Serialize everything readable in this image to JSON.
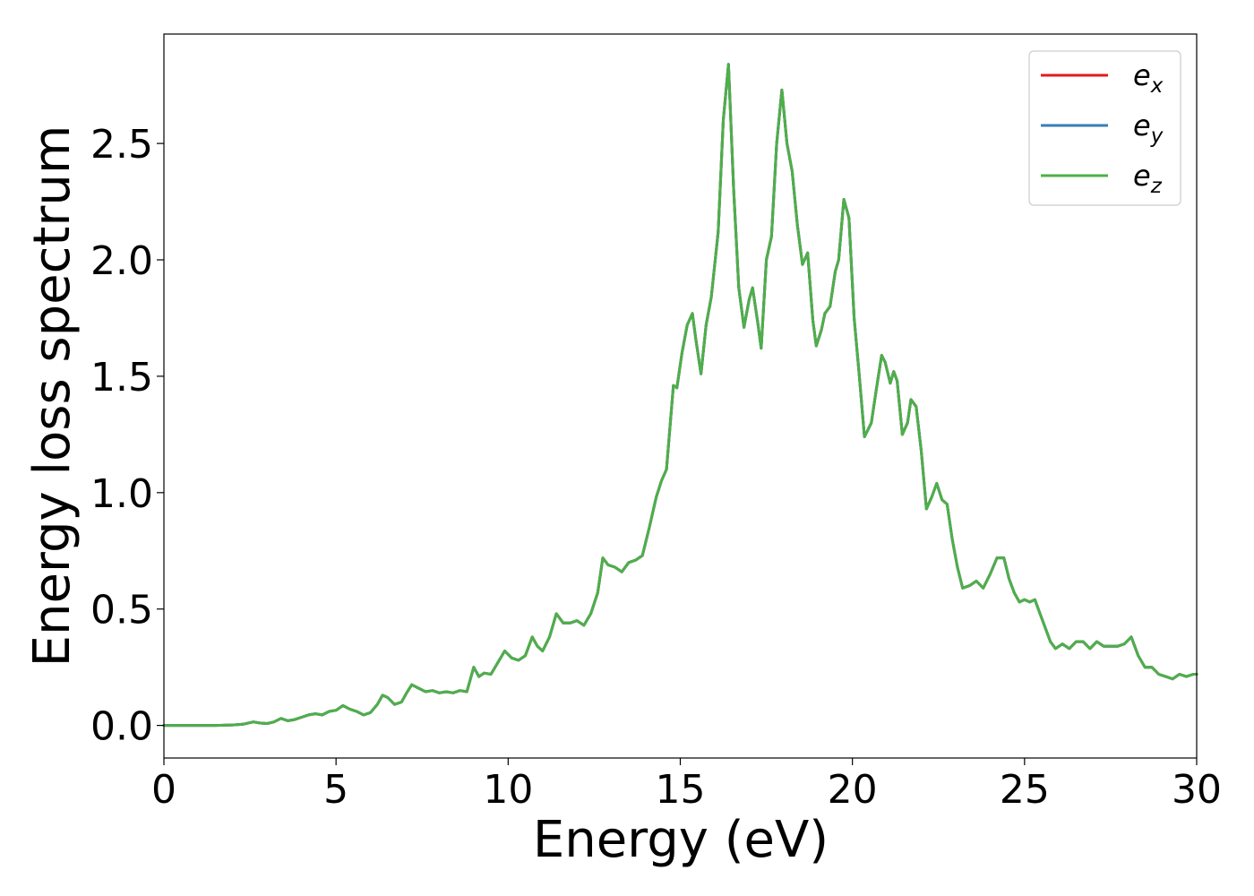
{
  "chart_data": {
    "type": "line",
    "xlabel": "Energy (eV)",
    "ylabel": "Energy loss spectrum",
    "xlim": [
      0,
      30
    ],
    "ylim": [
      -0.14,
      2.97
    ],
    "x_ticks": [
      0,
      5,
      10,
      15,
      20,
      25,
      30
    ],
    "y_ticks": [
      0.0,
      0.5,
      1.0,
      1.5,
      2.0,
      2.5
    ],
    "x_tick_labels": [
      "0",
      "5",
      "10",
      "15",
      "20",
      "25",
      "30"
    ],
    "y_tick_labels": [
      "0.0",
      "0.5",
      "1.0",
      "1.5",
      "2.0",
      "2.5"
    ],
    "grid": false,
    "legend_position": "top-right",
    "series": [
      {
        "name": "e",
        "subscript": "x",
        "color": "#e41a1c"
      },
      {
        "name": "e",
        "subscript": "y",
        "color": "#377eb8"
      },
      {
        "name": "e",
        "subscript": "z",
        "color": "#4daf4a"
      }
    ],
    "x": [
      0,
      0.5,
      1,
      1.5,
      2,
      2.3,
      2.6,
      2.8,
      3.0,
      3.2,
      3.4,
      3.6,
      3.8,
      4.0,
      4.2,
      4.4,
      4.6,
      4.8,
      5.0,
      5.2,
      5.4,
      5.6,
      5.8,
      6.0,
      6.2,
      6.35,
      6.5,
      6.7,
      6.9,
      7.05,
      7.2,
      7.4,
      7.6,
      7.8,
      8.0,
      8.2,
      8.4,
      8.6,
      8.8,
      9.0,
      9.15,
      9.3,
      9.5,
      9.7,
      9.9,
      10.1,
      10.3,
      10.5,
      10.7,
      10.85,
      11.0,
      11.2,
      11.4,
      11.6,
      11.8,
      12.0,
      12.2,
      12.4,
      12.6,
      12.75,
      12.9,
      13.1,
      13.3,
      13.5,
      13.7,
      13.9,
      14.1,
      14.3,
      14.45,
      14.6,
      14.8,
      14.9,
      15.05,
      15.2,
      15.35,
      15.45,
      15.6,
      15.75,
      15.9,
      16.1,
      16.25,
      16.4,
      16.55,
      16.7,
      16.85,
      17.0,
      17.1,
      17.25,
      17.35,
      17.5,
      17.65,
      17.8,
      17.95,
      18.1,
      18.25,
      18.4,
      18.55,
      18.7,
      18.85,
      18.95,
      19.1,
      19.2,
      19.35,
      19.5,
      19.6,
      19.75,
      19.9,
      20.05,
      20.2,
      20.35,
      20.55,
      20.7,
      20.85,
      20.95,
      21.1,
      21.2,
      21.3,
      21.45,
      21.6,
      21.7,
      21.85,
      22.0,
      22.15,
      22.3,
      22.45,
      22.6,
      22.75,
      22.9,
      23.05,
      23.2,
      23.4,
      23.6,
      23.8,
      24.0,
      24.2,
      24.4,
      24.55,
      24.7,
      24.85,
      25.0,
      25.15,
      25.3,
      25.45,
      25.6,
      25.75,
      25.9,
      26.1,
      26.3,
      26.5,
      26.7,
      26.9,
      27.1,
      27.3,
      27.5,
      27.7,
      27.9,
      28.1,
      28.3,
      28.5,
      28.7,
      28.9,
      29.1,
      29.3,
      29.5,
      29.7,
      29.9,
      30.0
    ],
    "y_ez": [
      0,
      0,
      0,
      0,
      0.002,
      0.005,
      0.015,
      0.01,
      0.008,
      0.015,
      0.03,
      0.02,
      0.025,
      0.035,
      0.045,
      0.05,
      0.045,
      0.06,
      0.065,
      0.085,
      0.07,
      0.06,
      0.045,
      0.055,
      0.09,
      0.13,
      0.12,
      0.09,
      0.1,
      0.14,
      0.175,
      0.16,
      0.145,
      0.15,
      0.14,
      0.145,
      0.14,
      0.15,
      0.145,
      0.25,
      0.21,
      0.225,
      0.22,
      0.27,
      0.32,
      0.29,
      0.28,
      0.3,
      0.38,
      0.34,
      0.32,
      0.38,
      0.48,
      0.44,
      0.44,
      0.45,
      0.43,
      0.48,
      0.57,
      0.72,
      0.69,
      0.68,
      0.66,
      0.7,
      0.71,
      0.73,
      0.85,
      0.98,
      1.05,
      1.1,
      1.46,
      1.45,
      1.6,
      1.72,
      1.77,
      1.66,
      1.51,
      1.72,
      1.84,
      2.12,
      2.6,
      2.84,
      2.3,
      1.88,
      1.71,
      1.83,
      1.88,
      1.73,
      1.62,
      2.0,
      2.1,
      2.5,
      2.73,
      2.5,
      2.38,
      2.15,
      1.98,
      2.03,
      1.74,
      1.63,
      1.7,
      1.77,
      1.8,
      1.95,
      2.0,
      2.26,
      2.18,
      1.75,
      1.5,
      1.24,
      1.3,
      1.45,
      1.59,
      1.56,
      1.47,
      1.52,
      1.48,
      1.25,
      1.3,
      1.4,
      1.37,
      1.18,
      0.93,
      0.98,
      1.04,
      0.97,
      0.95,
      0.8,
      0.68,
      0.59,
      0.6,
      0.62,
      0.59,
      0.65,
      0.72,
      0.72,
      0.63,
      0.57,
      0.53,
      0.54,
      0.53,
      0.54,
      0.48,
      0.42,
      0.36,
      0.33,
      0.35,
      0.33,
      0.36,
      0.36,
      0.33,
      0.36,
      0.34,
      0.34,
      0.34,
      0.35,
      0.38,
      0.3,
      0.25,
      0.25,
      0.22,
      0.21,
      0.2,
      0.22,
      0.21,
      0.22,
      0.22
    ]
  }
}
